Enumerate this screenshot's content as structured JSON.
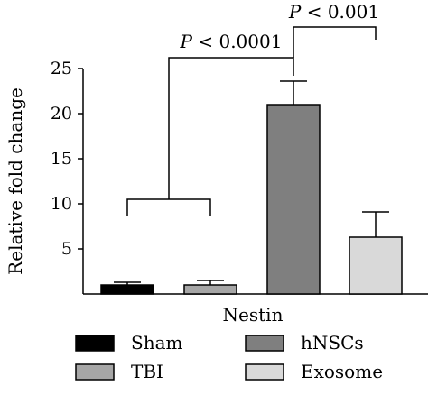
{
  "chart_data": {
    "type": "bar",
    "title": "",
    "xlabel": "Nestin",
    "ylabel": "Relative fold change",
    "ylim": [
      0,
      25
    ],
    "yticks": [
      5,
      10,
      15,
      20,
      25
    ],
    "categories": [
      "Sham",
      "TBI",
      "hNSCs",
      "Exosome"
    ],
    "values": [
      1.0,
      1.0,
      21.0,
      6.3
    ],
    "errors": [
      0.3,
      0.5,
      2.6,
      2.8
    ],
    "colors": [
      "#000000",
      "#a6a6a6",
      "#7f7f7f",
      "#d9d9d9"
    ],
    "legend": {
      "position": "bottom",
      "entries": [
        {
          "label": "Sham",
          "color": "#000000"
        },
        {
          "label": "TBI",
          "color": "#a6a6a6"
        },
        {
          "label": "hNSCs",
          "color": "#7f7f7f"
        },
        {
          "label": "Exosome",
          "color": "#d9d9d9"
        }
      ]
    },
    "annotations": [
      {
        "p": "P",
        "text": " < 0.0001",
        "from": "Sham+TBI",
        "to": "hNSCs"
      },
      {
        "p": "P",
        "text": " < 0.001",
        "from": "hNSCs",
        "to": "Exosome"
      }
    ],
    "grid": false
  }
}
